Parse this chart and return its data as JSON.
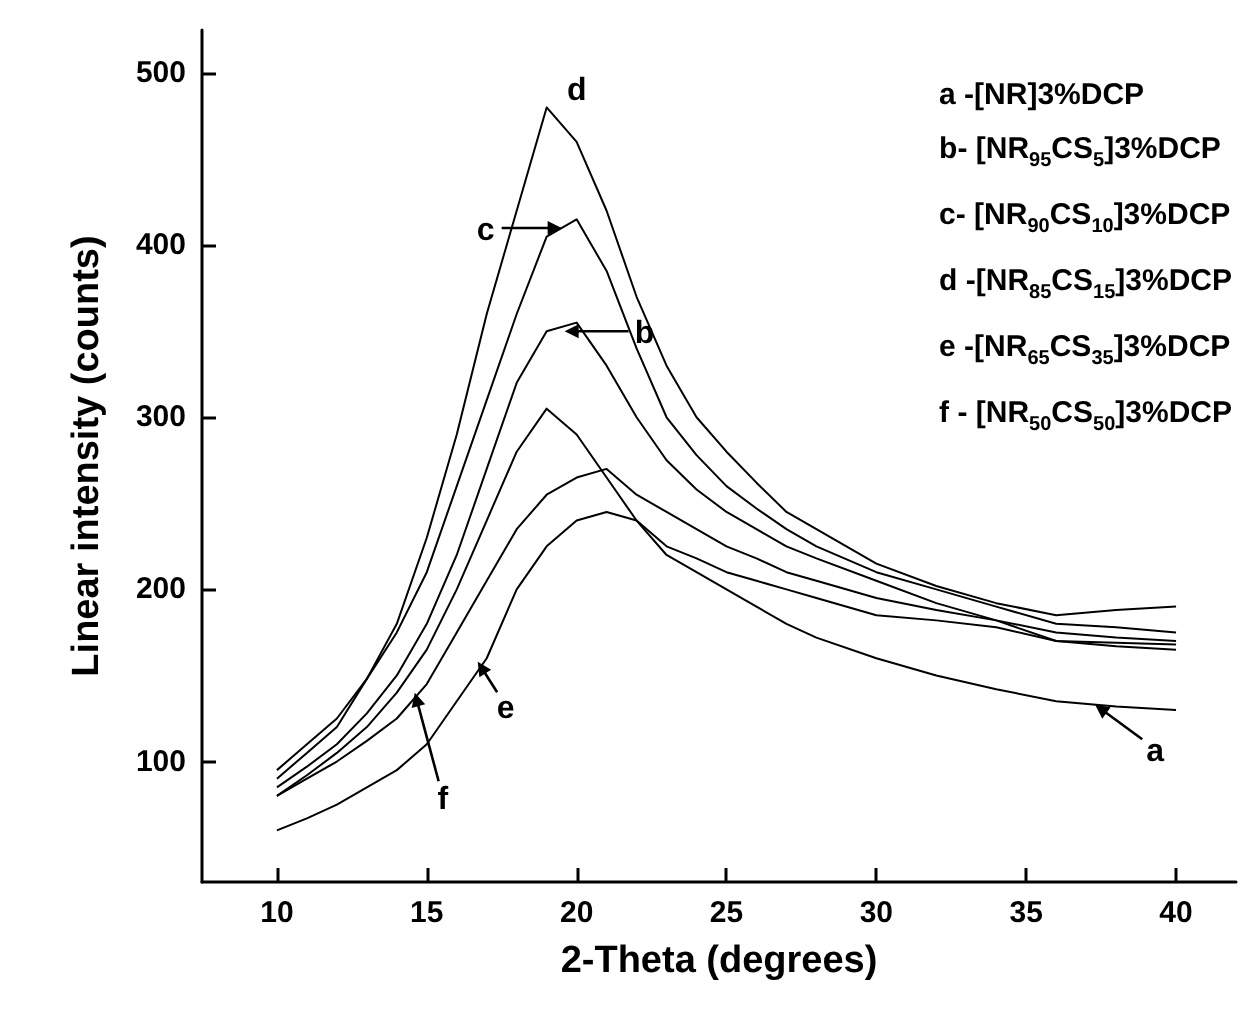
{
  "chart_data": {
    "type": "line",
    "xlabel": "2-Theta (degrees)",
    "ylabel": "Linear intensity (counts)",
    "xlim": [
      7.5,
      42
    ],
    "xticks": [
      10,
      15,
      20,
      25,
      30,
      35,
      40
    ],
    "ylim": [
      30,
      525
    ],
    "yticks": [
      100,
      200,
      300,
      400,
      500
    ],
    "grid": false,
    "marker": "none",
    "line_style": "solid",
    "x": [
      10,
      11,
      12,
      13,
      14,
      15,
      16,
      17,
      18,
      19,
      20,
      21,
      22,
      23,
      24,
      25,
      26,
      27,
      28,
      30,
      32,
      34,
      36,
      38,
      40
    ],
    "series": [
      {
        "color": "#000000",
        "values": [
          80,
          92,
          105,
          120,
          140,
          165,
          200,
          240,
          280,
          305,
          290,
          265,
          240,
          220,
          210,
          200,
          190,
          180,
          172,
          160,
          150,
          142,
          135,
          132,
          130
        ]
      },
      {
        "color": "#000000",
        "values": [
          85,
          97,
          110,
          128,
          150,
          180,
          220,
          270,
          320,
          350,
          355,
          330,
          300,
          275,
          258,
          245,
          235,
          225,
          218,
          205,
          192,
          182,
          175,
          172,
          170
        ]
      },
      {
        "color": "#000000",
        "values": [
          95,
          110,
          125,
          148,
          175,
          210,
          260,
          310,
          360,
          405,
          415,
          385,
          340,
          300,
          278,
          260,
          247,
          235,
          225,
          210,
          200,
          190,
          180,
          178,
          175
        ]
      },
      {
        "color": "#000000",
        "values": [
          90,
          105,
          120,
          148,
          180,
          230,
          290,
          360,
          420,
          480,
          460,
          420,
          370,
          330,
          300,
          280,
          262,
          245,
          235,
          215,
          202,
          192,
          185,
          188,
          190
        ]
      },
      {
        "color": "#000000",
        "values": [
          60,
          67,
          75,
          85,
          95,
          110,
          135,
          160,
          200,
          225,
          240,
          245,
          240,
          225,
          218,
          210,
          205,
          200,
          195,
          185,
          182,
          178,
          170,
          167,
          165
        ]
      },
      {
        "color": "#000000",
        "values": [
          80,
          90,
          100,
          112,
          125,
          145,
          175,
          205,
          235,
          255,
          265,
          270,
          255,
          245,
          235,
          225,
          218,
          210,
          205,
          195,
          188,
          182,
          170,
          169,
          168
        ]
      }
    ],
    "annotations": [
      {
        "text": "a",
        "x": 37.3,
        "y": 133
      },
      {
        "text": "b",
        "x": 19.6,
        "y": 350
      },
      {
        "text": "c",
        "x": 19.5,
        "y": 410
      },
      {
        "text": "d",
        "x": 19.2,
        "y": 482
      },
      {
        "text": "e",
        "x": 16.7,
        "y": 158
      },
      {
        "text": "f",
        "x": 14.6,
        "y": 140
      },
      "a -[NR]3%DCP",
      "b- [NR$_{95}$CS$_{5}$]3%DCP",
      "c- [NR$_{90}$CS$_{10}$]3%DCP",
      "d -[NR$_{85}$CS$_{15}$]3%DCP",
      "e -[NR$_{65}$CS$_{35}$]3%DCP",
      "f - [NR$_{50}$CS$_{50}$]3%DCP"
    ]
  }
}
